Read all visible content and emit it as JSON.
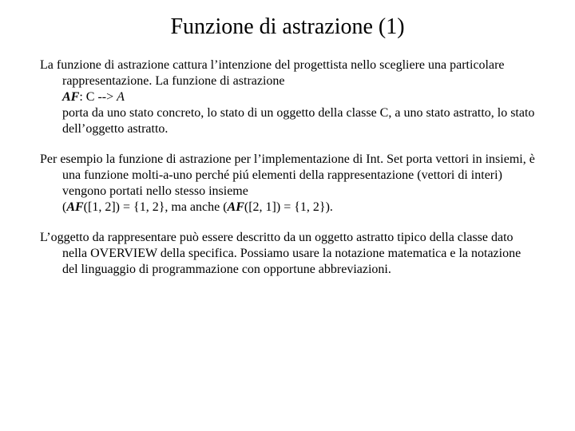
{
  "title": "Funzione di astrazione (1)",
  "p1_a": "La funzione di astrazione cattura l’intenzione del progettista nello scegliere una particolare rappresentazione. La funzione di astrazione",
  "p1_af1": "AF",
  "p1_b": ": C --> ",
  "p1_A": "A",
  "p1_c": "porta da uno stato concreto, lo stato di un oggetto della classe C, a uno stato astratto, lo stato dell’oggetto astratto.",
  "p2_a": "Per esempio la funzione di astrazione per l’implementazione di Int. Set porta vettori in insiemi, è una funzione molti-a-uno perché piú elementi della rappresentazione (vettori di interi) vengono portati nello stesso insieme",
  "p2_open1": "(",
  "p2_af2": "AF",
  "p2_b": "([1, 2]) = {1, 2}, ma anche (",
  "p2_af3": "AF",
  "p2_c": "([2, 1]) = {1, 2}).",
  "p3": "L’oggetto da rappresentare può essere descritto da un oggetto astratto tipico della classe dato nella OVERVIEW della specifica. Possiamo usare la notazione matematica e la notazione del linguaggio di programmazione con opportune abbreviazioni."
}
